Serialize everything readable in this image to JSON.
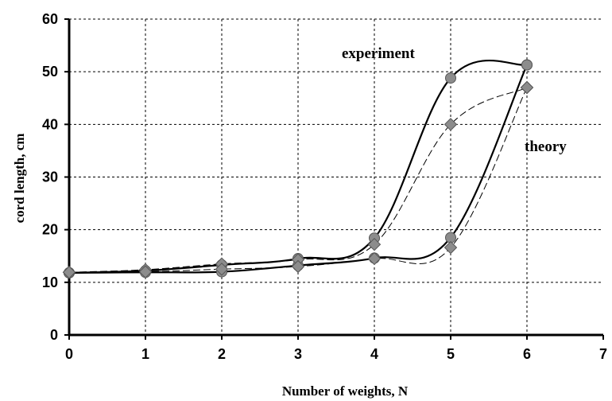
{
  "chart_data": {
    "type": "line",
    "xlabel": "Number of weights, N",
    "ylabel": "cord length, cm",
    "xlim": [
      0,
      7
    ],
    "ylim": [
      0,
      60
    ],
    "xticks": [
      "0",
      "1",
      "2",
      "3",
      "4",
      "5",
      "6",
      "7"
    ],
    "yticks": [
      "0",
      "10",
      "20",
      "30",
      "40",
      "50",
      "60"
    ],
    "grid": true,
    "annotations": [
      {
        "text": "experiment",
        "series_group": "experiment"
      },
      {
        "text": "theory",
        "series_group": "theory"
      }
    ],
    "series": [
      {
        "group": "experiment",
        "style": "solid",
        "marker": "circle",
        "color": "#000000",
        "x": [
          0,
          1,
          2,
          3,
          4,
          5,
          6
        ],
        "y": [
          11.8,
          12.2,
          13.3,
          14.5,
          18.4,
          48.8,
          51.3
        ]
      },
      {
        "group": "experiment",
        "style": "solid",
        "marker": "circle",
        "color": "#000000",
        "x": [
          0,
          1,
          2,
          3,
          4,
          5,
          6
        ],
        "y": [
          11.8,
          11.9,
          12.0,
          13.2,
          14.6,
          18.5,
          51.3
        ]
      },
      {
        "group": "theory",
        "style": "dashed",
        "marker": "diamond",
        "color": "#000000",
        "x": [
          0,
          1,
          2,
          3,
          4,
          5,
          6
        ],
        "y": [
          11.9,
          12.4,
          13.5,
          14.3,
          17.2,
          40.0,
          47.0
        ]
      },
      {
        "group": "theory",
        "style": "dashed",
        "marker": "diamond",
        "color": "#000000",
        "x": [
          0,
          1,
          2,
          3,
          4,
          5,
          6
        ],
        "y": [
          11.9,
          12.0,
          12.5,
          13.0,
          14.5,
          16.6,
          47.0
        ]
      }
    ],
    "marker_color": "#8c8c8c"
  }
}
